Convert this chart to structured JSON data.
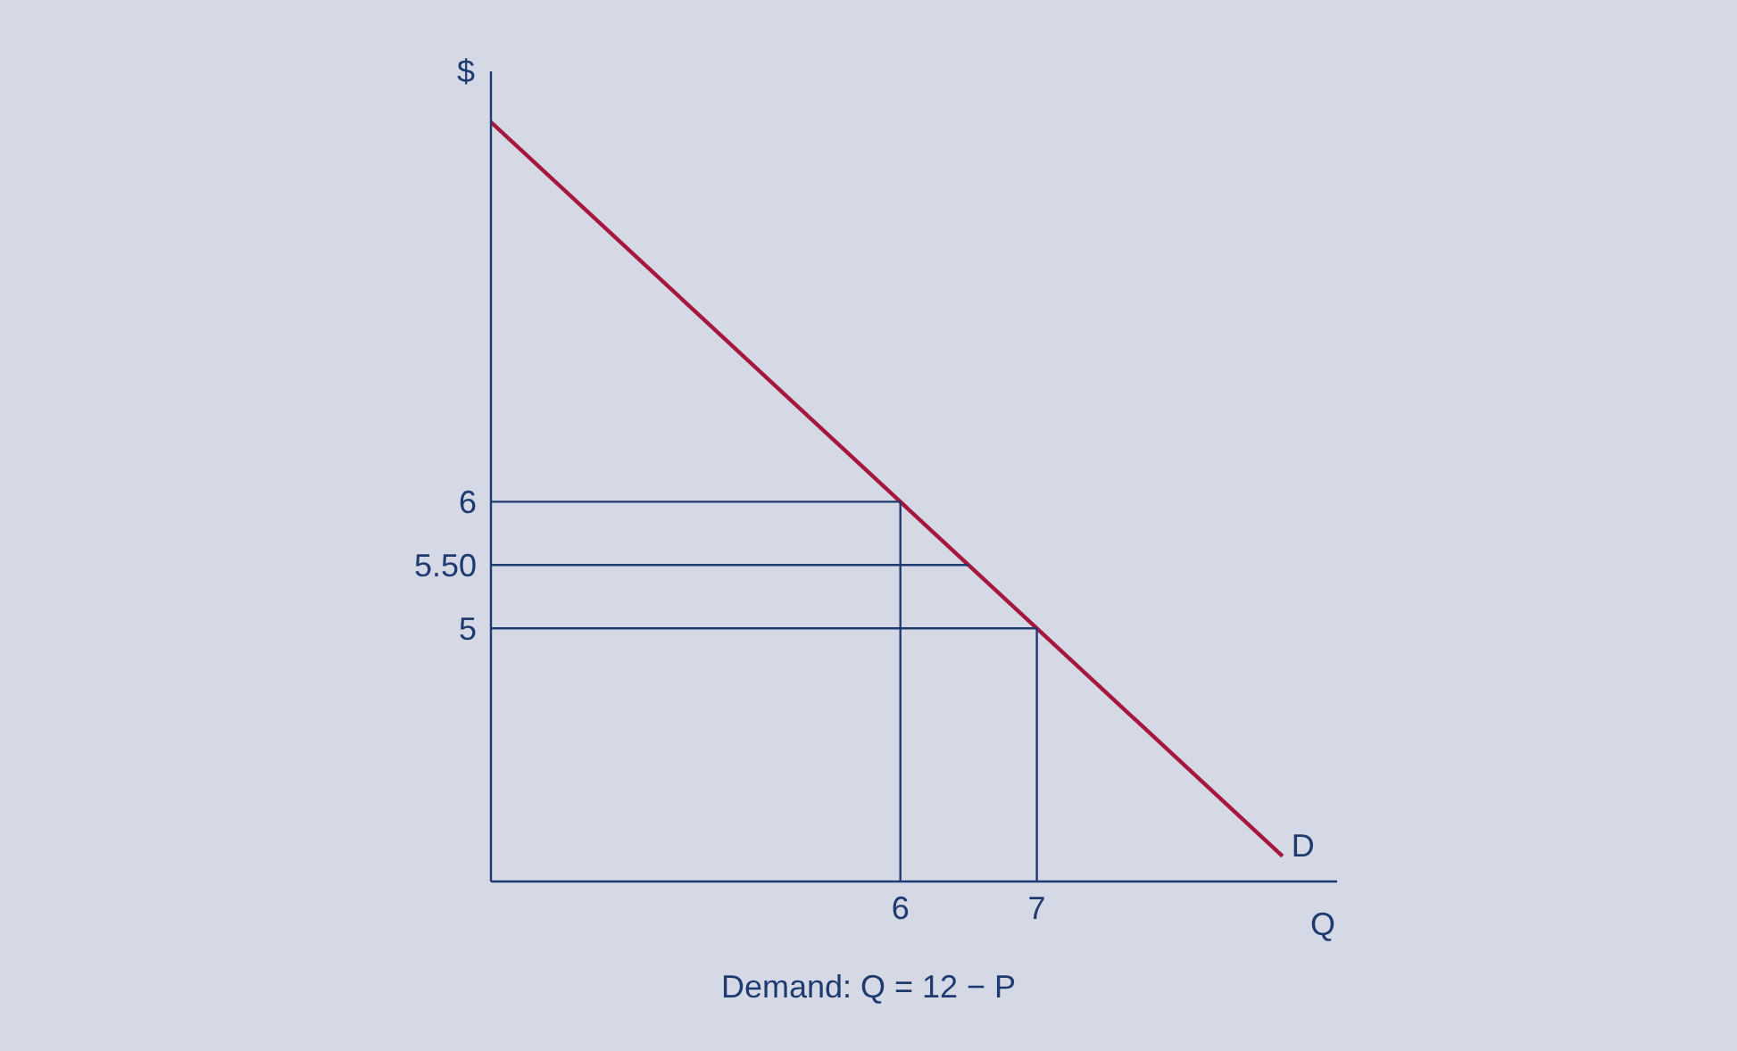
{
  "chart_data": {
    "type": "line",
    "xlabel": "Q",
    "ylabel": "$",
    "xlim": [
      3,
      9.2
    ],
    "ylim": [
      3,
      9.4
    ],
    "xticks": [
      6,
      7
    ],
    "yticks": [
      6,
      {
        "value": 5.5,
        "label": "5.50"
      },
      5
    ],
    "marker": "none",
    "line_style": "solid",
    "series": [
      {
        "color": "#a5173f",
        "x": [
          3,
          8.8
        ],
        "values": [
          9,
          3.2
        ]
      },
      {
        "color": "#1f3a6e",
        "x": [
          3,
          6
        ],
        "values": [
          6,
          6
        ]
      },
      {
        "color": "#1f3a6e",
        "x": [
          3,
          6.5
        ],
        "values": [
          5.5,
          5.5
        ]
      },
      {
        "color": "#1f3a6e",
        "x": [
          3,
          7
        ],
        "values": [
          5,
          5
        ]
      },
      {
        "color": "#1f3a6e",
        "x": [
          6,
          6
        ],
        "values": [
          3,
          6
        ]
      },
      {
        "color": "#1f3a6e",
        "x": [
          7,
          7
        ],
        "values": [
          3,
          5
        ]
      }
    ],
    "annotations": [
      {
        "text": "D",
        "x": 8.8,
        "y": 3.2
      },
      "Demand: Q = 12 − P"
    ]
  }
}
